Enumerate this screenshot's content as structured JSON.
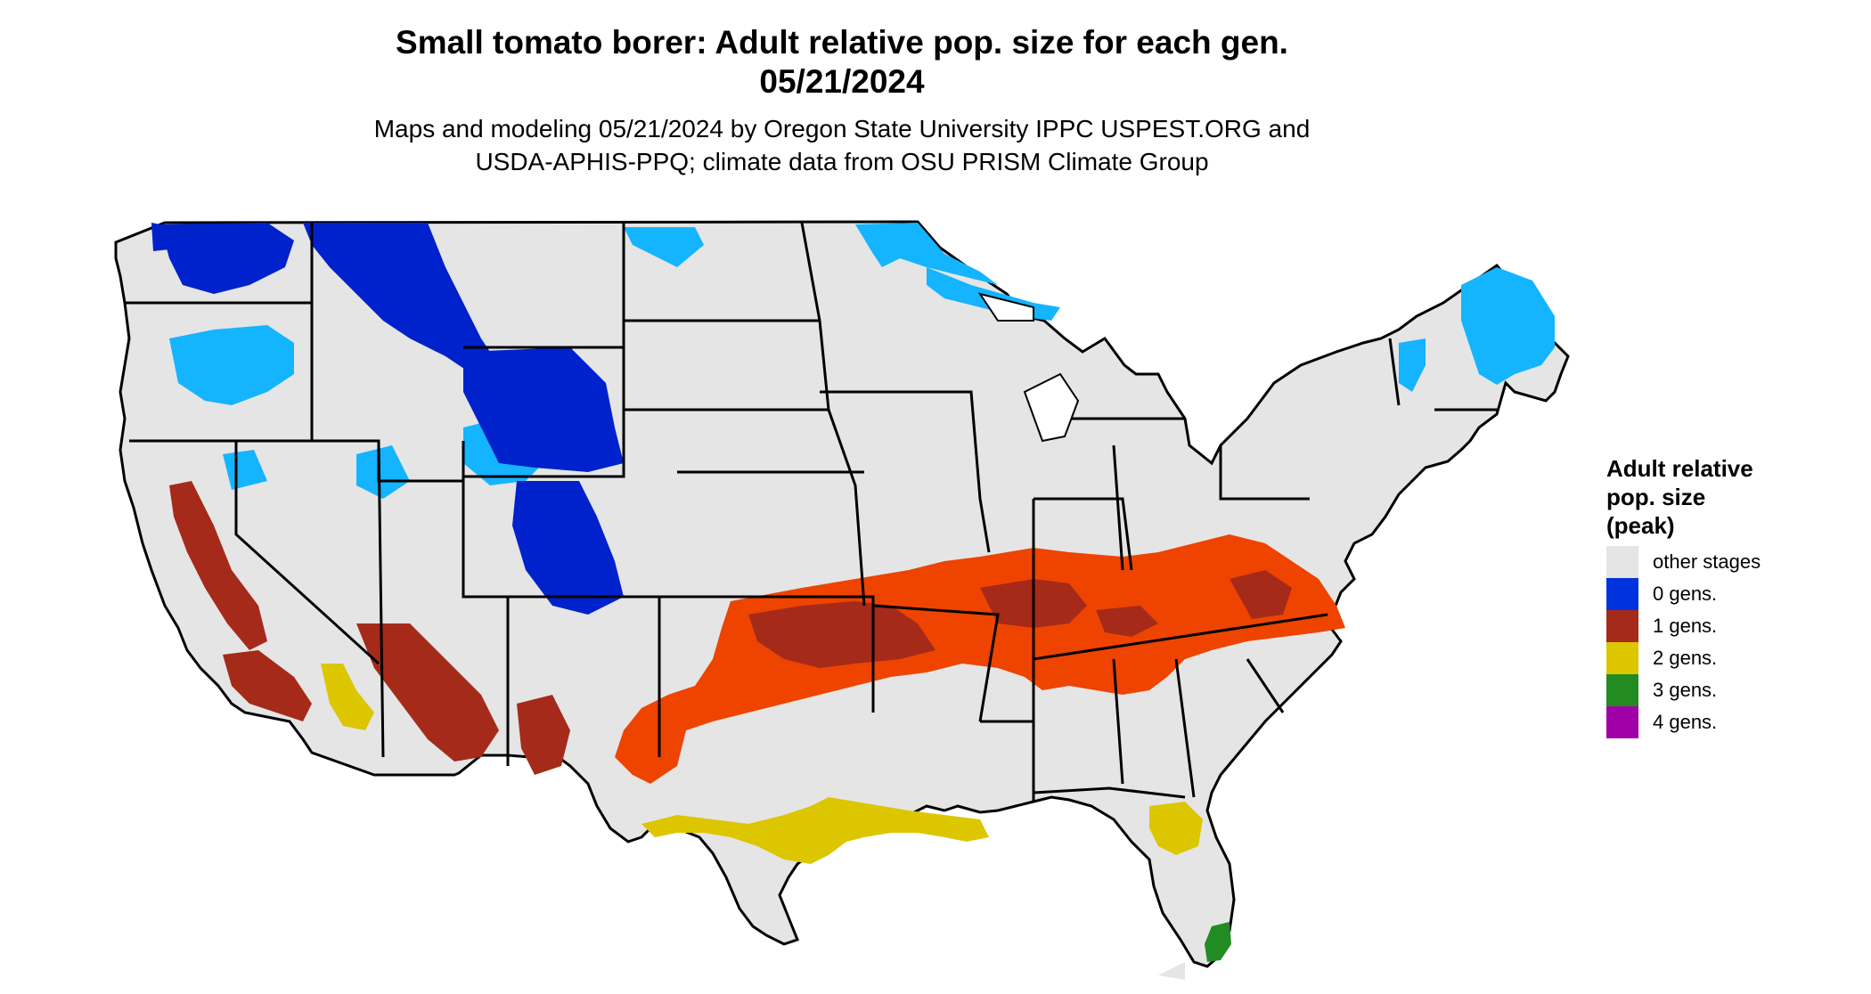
{
  "title": {
    "line1": "Small tomato borer: Adult relative pop. size for each gen.",
    "line2": "05/21/2024"
  },
  "subtitle": {
    "line1": "Maps and modeling 05/21/2024 by Oregon State University IPPC USPEST.ORG and",
    "line2": "USDA-APHIS-PPQ; climate data from OSU PRISM Climate Group"
  },
  "legend": {
    "title_line1": "Adult relative",
    "title_line2": "pop. size",
    "title_line3": "(peak)",
    "items": [
      {
        "label": "other stages",
        "color": "#e5e5e5"
      },
      {
        "label": "0 gens.",
        "color": "#0033dd"
      },
      {
        "label": "1 gens.",
        "color": "#a52a1a"
      },
      {
        "label": "2 gens.",
        "color": "#dcc600"
      },
      {
        "label": "3 gens.",
        "color": "#228b22"
      },
      {
        "label": "4 gens.",
        "color": "#a000a8"
      }
    ]
  },
  "map_colors": {
    "land": "#e5e5e5",
    "boundary": "#000000",
    "zero_gens_light": "#14b4ff",
    "zero_gens_dark": "#0022cc",
    "one_gen_light": "#ee4400",
    "one_gen_dark": "#a52a1a",
    "two_gens": "#dcc600",
    "three_gens": "#228b22"
  }
}
